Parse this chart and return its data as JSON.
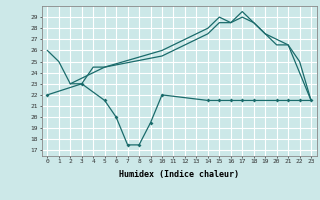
{
  "xlabel": "Humidex (Indice chaleur)",
  "bg_color": "#cce8e8",
  "grid_color": "#ffffff",
  "line_color": "#1a6b6b",
  "xlim": [
    -0.5,
    23.5
  ],
  "ylim": [
    16.5,
    30
  ],
  "yticks": [
    17,
    18,
    19,
    20,
    21,
    22,
    23,
    24,
    25,
    26,
    27,
    28,
    29
  ],
  "xticks": [
    0,
    1,
    2,
    3,
    4,
    5,
    6,
    7,
    8,
    9,
    10,
    11,
    12,
    13,
    14,
    15,
    16,
    17,
    18,
    19,
    20,
    21,
    22,
    23
  ],
  "line_upper_x": [
    0,
    1,
    2,
    3,
    4,
    5,
    10,
    11,
    12,
    13,
    14,
    15,
    16,
    17,
    18,
    19,
    20,
    21,
    22,
    23
  ],
  "line_upper_y": [
    26,
    25,
    23,
    23,
    24.5,
    24.5,
    26,
    26.5,
    27,
    27.5,
    28,
    29,
    28.5,
    29.5,
    28.5,
    27.5,
    26.5,
    26.5,
    24,
    21.5
  ],
  "line_mid_x": [
    2,
    3,
    4,
    5,
    10,
    11,
    12,
    13,
    14,
    15,
    16,
    17,
    18,
    19,
    20,
    21,
    22,
    23
  ],
  "line_mid_y": [
    23,
    23.5,
    24,
    24.5,
    25.5,
    26,
    26.5,
    27,
    27.5,
    28.5,
    28.5,
    29,
    28.5,
    27.5,
    27,
    26.5,
    25,
    21.5
  ],
  "line_low_x": [
    0,
    3,
    5,
    6,
    7,
    8,
    9,
    10,
    14,
    15,
    16,
    17,
    18,
    20,
    21,
    22,
    23
  ],
  "line_low_y": [
    22,
    23,
    21.5,
    20,
    17.5,
    17.5,
    19.5,
    22,
    21.5,
    21.5,
    21.5,
    21.5,
    21.5,
    21.5,
    21.5,
    21.5,
    21.5
  ]
}
